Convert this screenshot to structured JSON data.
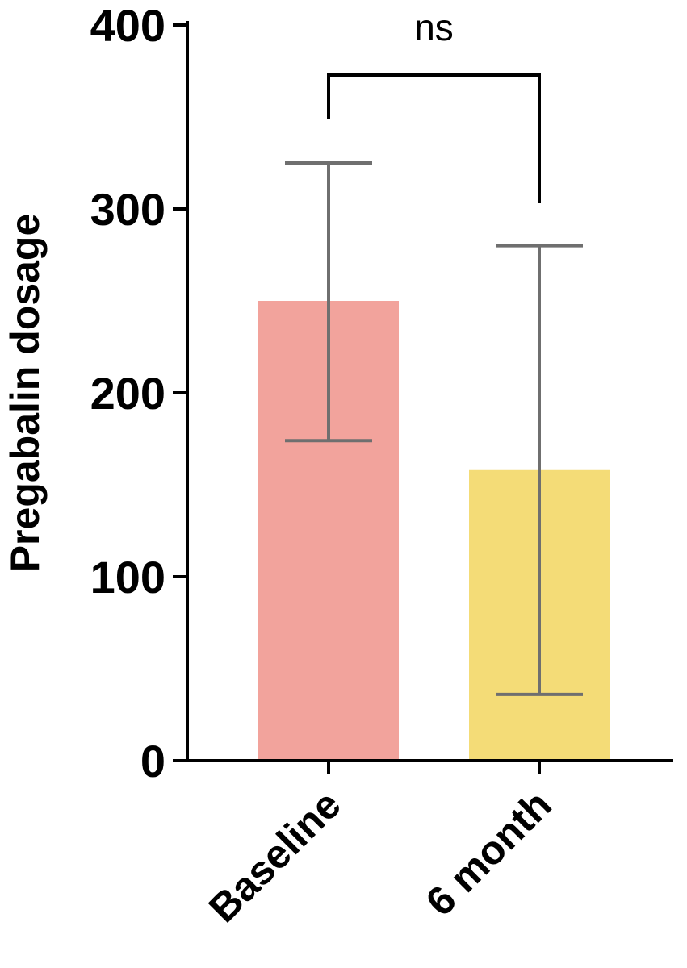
{
  "chart_data": {
    "type": "bar",
    "title": "",
    "xlabel": "",
    "ylabel": "Pregabalin dosage",
    "ylim": [
      0,
      400
    ],
    "yticks": [
      0,
      100,
      200,
      300,
      400
    ],
    "categories": [
      "Baseline",
      "6 month"
    ],
    "values": [
      250,
      158
    ],
    "error_low": [
      174,
      36
    ],
    "error_high": [
      325,
      280
    ],
    "colors": [
      "#f2a39c",
      "#f4dc77"
    ],
    "error_color": "#6f6f6f",
    "grid": false,
    "legend": "none",
    "annotations": [
      {
        "type": "significance-bracket",
        "from": 0,
        "to": 1,
        "text": "ns"
      }
    ]
  }
}
